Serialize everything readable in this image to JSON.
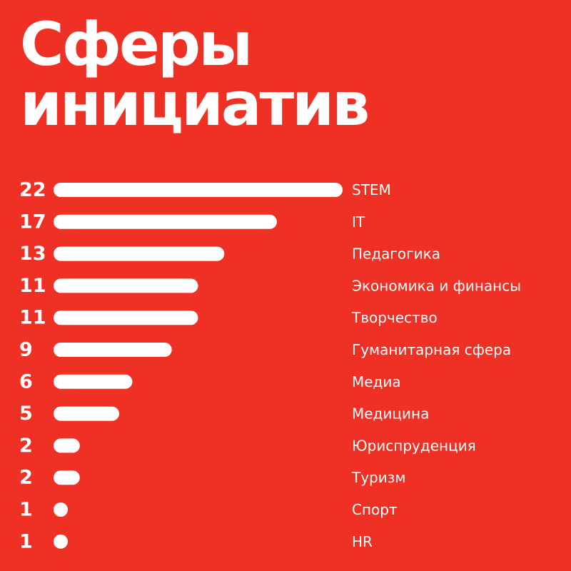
{
  "title_line1": "Сферы",
  "title_line2": "инициатив",
  "colors": {
    "background": "#ee3124",
    "bar": "#ffffff",
    "text": "#ffffff"
  },
  "chart_data": {
    "type": "bar",
    "orientation": "horizontal",
    "categories": [
      "STEM",
      "IT",
      "Педагогика",
      "Экономика и финансы",
      "Творчество",
      "Гуманитарная сфера",
      "Медиа",
      "Медицина",
      "Юриспруденция",
      "Туризм",
      "Спорт",
      "HR"
    ],
    "values": [
      22,
      17,
      13,
      11,
      11,
      9,
      6,
      5,
      2,
      2,
      1,
      1
    ],
    "value_labels": [
      "22",
      "17",
      "13",
      "11",
      "11",
      "9",
      "6",
      "5",
      "2",
      "2",
      "1",
      "1"
    ],
    "xlim": [
      0,
      22
    ],
    "grid": false,
    "legend": "none"
  }
}
